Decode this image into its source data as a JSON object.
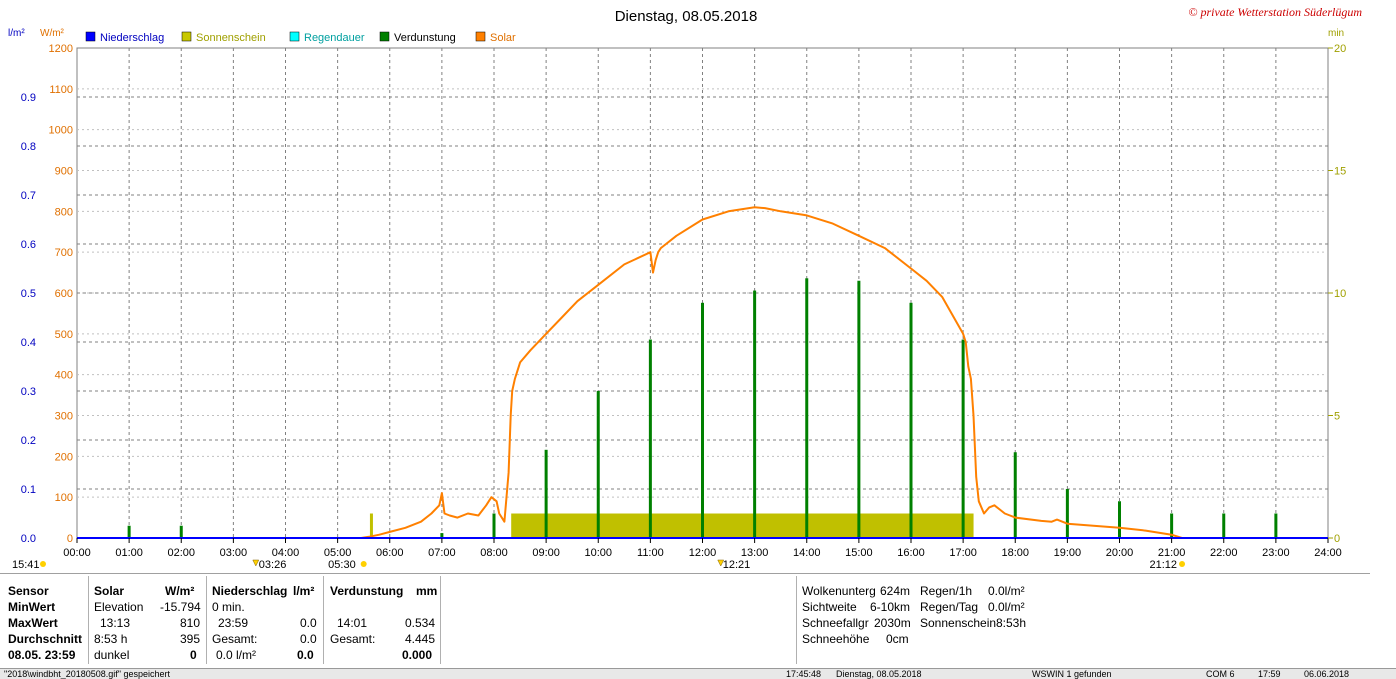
{
  "chart_data": {
    "type": "line",
    "title": "Dienstag, 08.05.2018",
    "copyright": "© private Wetterstation Süderlügum",
    "left_axis_units": [
      "l/m²",
      "W/m²"
    ],
    "right_axis_unit": "min",
    "legend": [
      {
        "name": "Niederschlag",
        "color": "#0000ff"
      },
      {
        "name": "Sonnenschein",
        "color": "#c8c800"
      },
      {
        "name": "Regendauer",
        "color": "#00ffff"
      },
      {
        "name": "Verdunstung",
        "color": "#008000"
      },
      {
        "name": "Solar",
        "color": "#ff8000"
      }
    ],
    "x_ticks": [
      "00:00",
      "01:00",
      "02:00",
      "03:00",
      "04:00",
      "05:00",
      "06:00",
      "07:00",
      "08:00",
      "09:00",
      "10:00",
      "11:00",
      "12:00",
      "13:00",
      "14:00",
      "15:00",
      "16:00",
      "17:00",
      "18:00",
      "19:00",
      "20:00",
      "21:00",
      "22:00",
      "23:00",
      "24:00"
    ],
    "xlim": [
      0,
      24
    ],
    "ylim_precip": [
      0,
      1.0
    ],
    "ylim_solar": [
      0,
      1200
    ],
    "ylim_minutes": [
      0,
      20
    ],
    "precip_ticks": [
      "0.0",
      "0.1",
      "0.2",
      "0.3",
      "0.4",
      "0.5",
      "0.6",
      "0.7",
      "0.8",
      "0.9"
    ],
    "solar_ticks": [
      "0",
      "100",
      "200",
      "300",
      "400",
      "500",
      "600",
      "700",
      "800",
      "900",
      "1000",
      "1100",
      "1200"
    ],
    "minutes_ticks": [
      "0",
      "5",
      "10",
      "15",
      "20"
    ],
    "solar_series": {
      "name": "Solar",
      "x": [
        5.45,
        5.6,
        5.8,
        6.0,
        6.3,
        6.6,
        6.8,
        6.95,
        7.0,
        7.05,
        7.15,
        7.3,
        7.5,
        7.7,
        7.85,
        7.95,
        8.05,
        8.1,
        8.2,
        8.28,
        8.32,
        8.35,
        8.4,
        8.5,
        8.7,
        9.0,
        9.3,
        9.6,
        10.0,
        10.5,
        11.0,
        11.05,
        11.1,
        11.15,
        11.2,
        11.5,
        12.0,
        12.5,
        13.0,
        13.2,
        13.5,
        14.0,
        14.5,
        15.0,
        15.5,
        16.0,
        16.3,
        16.6,
        17.0,
        17.05,
        17.1,
        17.15,
        17.2,
        17.25,
        17.3,
        17.4,
        17.5,
        17.6,
        17.7,
        17.8,
        17.9,
        18.0,
        18.5,
        18.7,
        18.8,
        19.0,
        19.5,
        20.0,
        20.5,
        21.0,
        21.2
      ],
      "y": [
        0,
        3,
        8,
        15,
        25,
        40,
        60,
        80,
        110,
        60,
        55,
        50,
        60,
        55,
        80,
        100,
        90,
        60,
        40,
        160,
        300,
        360,
        390,
        430,
        460,
        500,
        540,
        580,
        620,
        670,
        700,
        650,
        680,
        700,
        710,
        740,
        780,
        800,
        810,
        808,
        800,
        790,
        770,
        740,
        710,
        660,
        630,
        590,
        500,
        480,
        420,
        390,
        300,
        150,
        90,
        60,
        75,
        80,
        70,
        60,
        55,
        50,
        42,
        40,
        45,
        35,
        30,
        25,
        18,
        8,
        0
      ]
    },
    "verdunstung_series": {
      "name": "Verdunstung",
      "x": [
        1.0,
        2.0,
        7.0,
        8.0,
        9.0,
        10.0,
        11.0,
        12.0,
        13.0,
        14.0,
        15.0,
        16.0,
        17.0,
        18.0,
        19.0,
        20.0,
        21.0,
        22.0,
        23.0
      ],
      "y_minutes": [
        0.5,
        0.5,
        0.2,
        1.0,
        3.6,
        6.0,
        8.1,
        9.6,
        10.1,
        10.6,
        10.5,
        9.6,
        8.1,
        3.5,
        2.0,
        1.5,
        1.0,
        1.0,
        1.0
      ]
    },
    "sunshine_series": {
      "name": "Sonnenschein",
      "x_start": 8.33,
      "x_end": 17.2,
      "y_minutes": 1.0
    },
    "sun_markers": {
      "sunrise": "05:30",
      "sunset": "21:12",
      "noon": "12:21",
      "dawn": "03:26",
      "left_time": "15:41"
    }
  },
  "stats": {
    "sensor": {
      "header": "Sensor",
      "min": "MinWert",
      "max": "MaxWert",
      "avg": "Durchschnitt",
      "date": "08.05. 23:59"
    },
    "solar": {
      "header": "Solar",
      "unit": "W/m²",
      "r1a": "Elevation",
      "r1b": "-15.794",
      "r2a": "13:13",
      "r2b": "810",
      "r3a": "8:53 h",
      "r3b": "395",
      "r4a": "dunkel",
      "r4b": "0"
    },
    "precip": {
      "header": "Niederschlag",
      "unit": "l/m²",
      "r1a": "0 min.",
      "r2a": "23:59",
      "r2b": "0.0",
      "r3a": "Gesamt:",
      "r3b": "0.0",
      "r4a": "0.0 l/m²",
      "r4b": "0.0"
    },
    "evap": {
      "header": "Verdunstung",
      "unit": "mm",
      "r2a": "14:01",
      "r2b": "0.534",
      "r3a": "Gesamt:",
      "r3b": "4.445",
      "r4b": "0.000"
    },
    "weather": [
      {
        "label": "Wolkenunterg",
        "value": "624m"
      },
      {
        "label": "Sichtweite",
        "value": "6-10km"
      },
      {
        "label": "Schneefallgr",
        "value": "2030m"
      },
      {
        "label": "Schneehöhe",
        "value": "0cm"
      }
    ],
    "rain": [
      {
        "label": "Regen/1h",
        "value": "0.0l/m²"
      },
      {
        "label": "Regen/Tag",
        "value": "0.0l/m²"
      },
      {
        "label": "Sonnenschein",
        "value": "8:53h"
      }
    ]
  },
  "statusbar": {
    "file": "\"2018\\windbht_20180508.gif\"  gespeichert",
    "time": "17:45:48",
    "date": "Dienstag, 08.05.2018",
    "ws": "WSWIN 1 gefunden",
    "com": "COM 6",
    "clock": "17:59",
    "today": "06.06.2018"
  }
}
